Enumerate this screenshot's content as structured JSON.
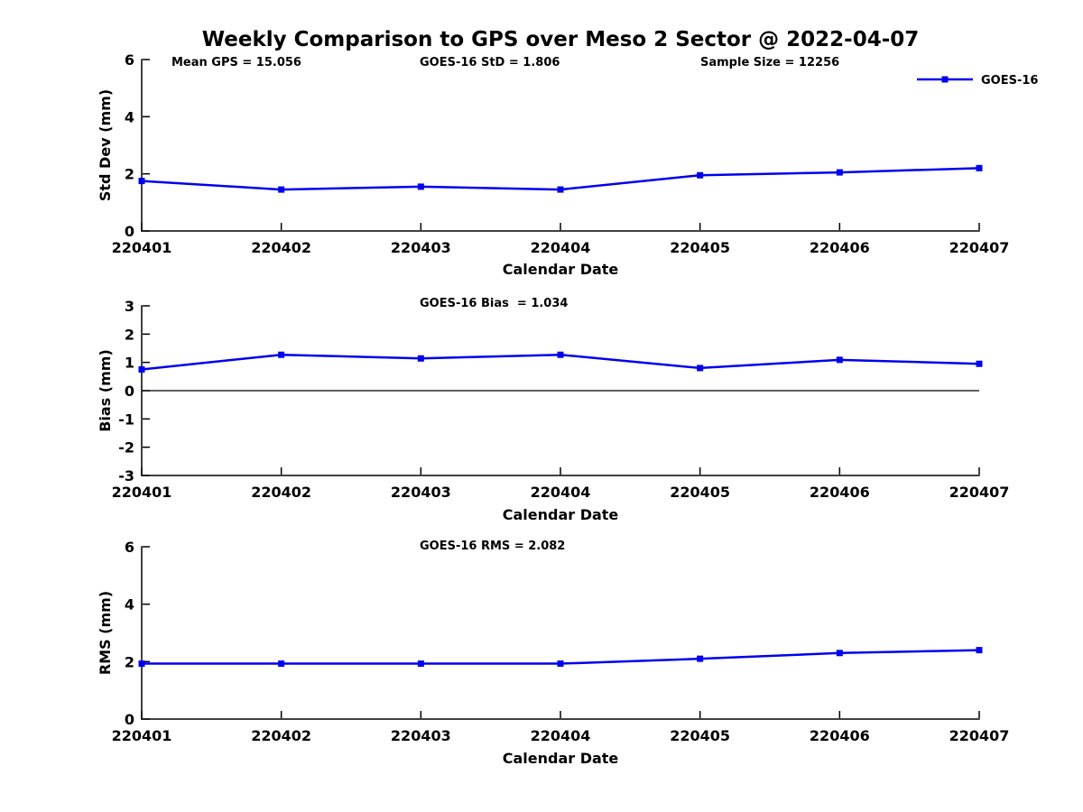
{
  "title": "Weekly Comparison to GPS over Meso 2 Sector @ 2022-04-07",
  "colors": {
    "series": "#0000ee",
    "axis": "#000000",
    "zero_line": "#000000",
    "background": "#ffffff",
    "text": "#000000"
  },
  "legend": {
    "label": "GOES-16",
    "position": "upper right",
    "marker": "square"
  },
  "chart_data": [
    {
      "type": "line",
      "name": "std_dev_panel",
      "title": "",
      "xlabel": "Calendar Date",
      "ylabel": "Std Dev (mm)",
      "categories": [
        "220401",
        "220402",
        "220403",
        "220404",
        "220405",
        "220406",
        "220407"
      ],
      "series": [
        {
          "name": "GOES-16",
          "values": [
            1.75,
            1.45,
            1.55,
            1.45,
            1.95,
            2.05,
            2.2
          ]
        }
      ],
      "ylim": [
        0,
        6
      ],
      "yticks": [
        0,
        2,
        4,
        6
      ],
      "grid": false,
      "zero_line": false,
      "show_legend": true,
      "annotations": [
        "Mean GPS = 15.056",
        "GOES-16 StD = 1.806",
        "Sample Size = 12256"
      ]
    },
    {
      "type": "line",
      "name": "bias_panel",
      "title": "",
      "xlabel": "Calendar Date",
      "ylabel": "Bias (mm)",
      "categories": [
        "220401",
        "220402",
        "220403",
        "220404",
        "220405",
        "220406",
        "220407"
      ],
      "series": [
        {
          "name": "GOES-16",
          "values": [
            0.75,
            1.27,
            1.14,
            1.27,
            0.8,
            1.09,
            0.95
          ]
        }
      ],
      "ylim": [
        -3,
        3
      ],
      "yticks": [
        -3,
        -2,
        -1,
        0,
        1,
        2,
        3
      ],
      "grid": false,
      "zero_line": true,
      "show_legend": false,
      "annotations": [
        "GOES-16 Bias  = 1.034"
      ]
    },
    {
      "type": "line",
      "name": "rms_panel",
      "title": "",
      "xlabel": "Calendar Date",
      "ylabel": "RMS (mm)",
      "categories": [
        "220401",
        "220402",
        "220403",
        "220404",
        "220405",
        "220406",
        "220407"
      ],
      "series": [
        {
          "name": "GOES-16",
          "values": [
            1.93,
            1.93,
            1.93,
            1.93,
            2.1,
            2.3,
            2.4
          ]
        }
      ],
      "ylim": [
        0,
        6
      ],
      "yticks": [
        0,
        2,
        4,
        6
      ],
      "grid": false,
      "zero_line": false,
      "show_legend": false,
      "annotations": [
        "GOES-16 RMS = 2.082"
      ]
    }
  ]
}
